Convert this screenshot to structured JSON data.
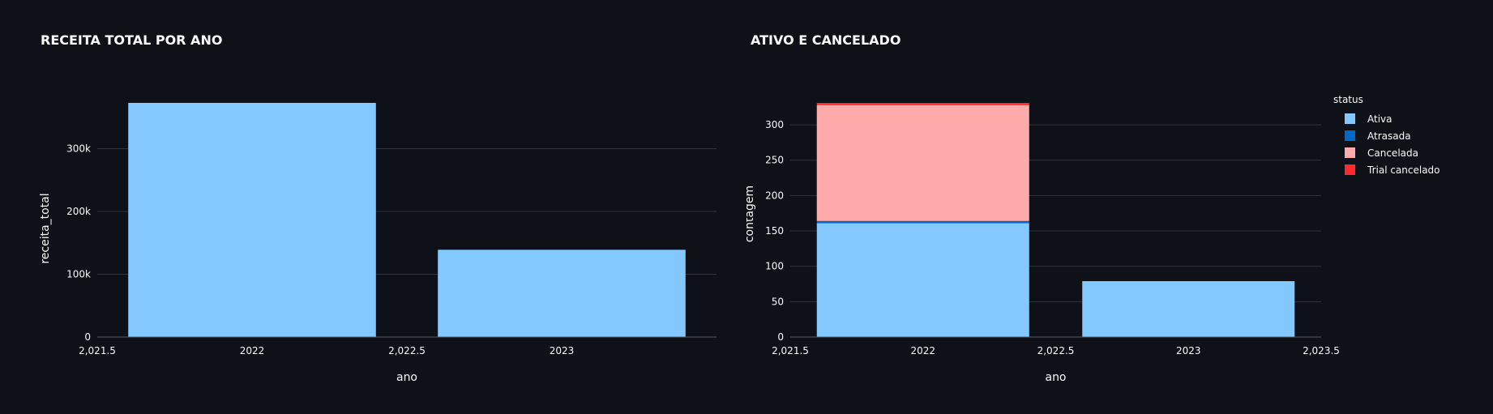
{
  "colors": {
    "background": "#0e1117",
    "grid": "#31333f",
    "text": "#fafafa"
  },
  "chart_data": [
    {
      "type": "bar",
      "title": "RECEITA TOTAL POR ANO",
      "xlabel": "ano",
      "ylabel": "receita_total",
      "x": [
        2022,
        2023
      ],
      "series": [
        {
          "values": [
            373000,
            139000
          ],
          "color": "#83c9ff"
        }
      ],
      "xlim": [
        2021.5,
        2023.5
      ],
      "ylim": [
        0,
        373000
      ],
      "x_tick_values": [
        2021.5,
        2022,
        2022.5,
        2023
      ],
      "x_tick_labels": [
        "2,021.5",
        "2022",
        "2,022.5",
        "2023"
      ],
      "y_tick_values": [
        0,
        100000,
        200000,
        300000
      ],
      "y_tick_labels": [
        "0",
        "100k",
        "200k",
        "300k"
      ],
      "grid": true,
      "legend": "none"
    },
    {
      "type": "bar",
      "stacked": true,
      "title": "ATIVO E CANCELADO",
      "xlabel": "ano",
      "ylabel": "contagem",
      "x": [
        2022,
        2023
      ],
      "legend_title": "status",
      "legend": "right",
      "series": [
        {
          "name": "Ativa",
          "values": [
            161,
            79
          ],
          "color": "#83c9ff"
        },
        {
          "name": "Atrasada",
          "values": [
            3,
            0
          ],
          "color": "#0068c9"
        },
        {
          "name": "Cancelada",
          "values": [
            164,
            0
          ],
          "color": "#ffabab"
        },
        {
          "name": "Trial cancelado",
          "values": [
            3,
            0
          ],
          "color": "#ff2b2b"
        }
      ],
      "xlim": [
        2021.5,
        2023.5
      ],
      "ylim": [
        0,
        331
      ],
      "x_tick_values": [
        2021.5,
        2022,
        2022.5,
        2023,
        2023.5
      ],
      "x_tick_labels": [
        "2,021.5",
        "2022",
        "2,022.5",
        "2023",
        "2,023.5"
      ],
      "y_tick_values": [
        0,
        50,
        100,
        150,
        200,
        250,
        300
      ],
      "y_tick_labels": [
        "0",
        "50",
        "100",
        "150",
        "200",
        "250",
        "300"
      ],
      "grid": true
    }
  ]
}
